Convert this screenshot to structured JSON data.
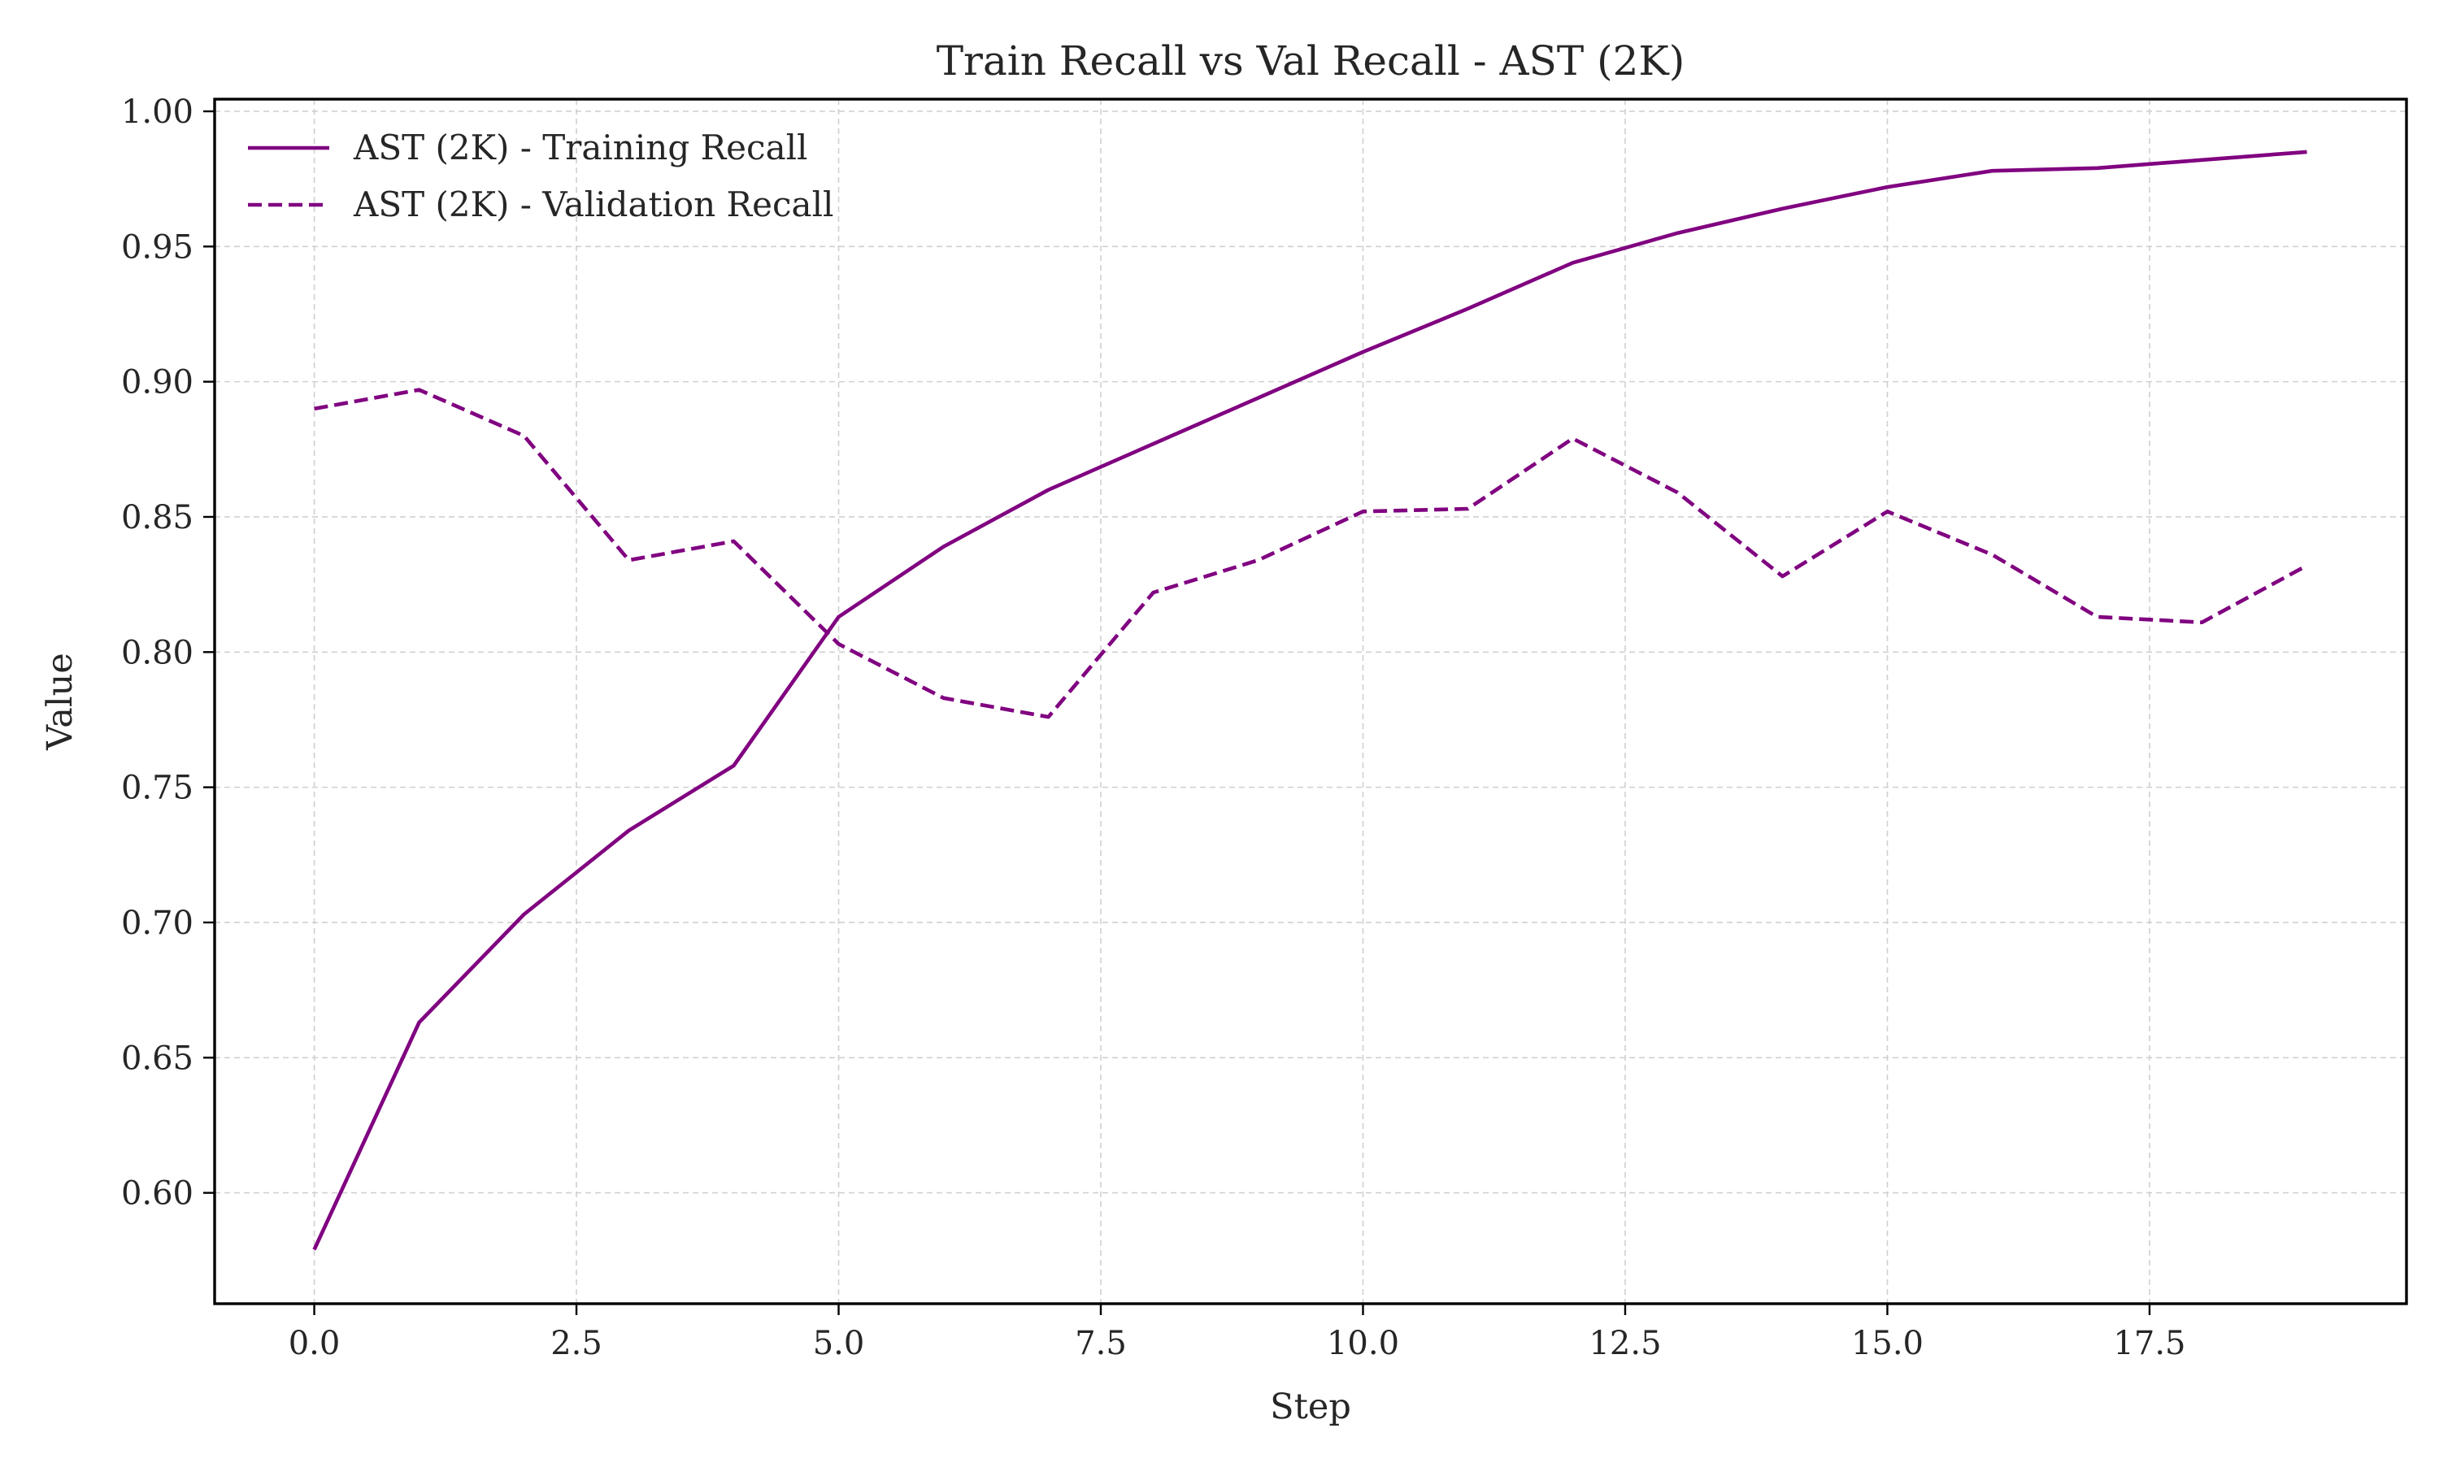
{
  "chart_data": {
    "type": "line",
    "title": "Train Recall vs Val Recall - AST (2K)",
    "xlabel": "Step",
    "ylabel": "Value",
    "xlim": [
      -0.95,
      19.95
    ],
    "ylim": [
      0.559,
      1.0045
    ],
    "xticks": [
      0,
      2.5,
      5,
      7.5,
      10,
      12.5,
      15,
      17.5
    ],
    "xtick_labels": [
      "0.0",
      "2.5",
      "5.0",
      "7.5",
      "10.0",
      "12.5",
      "15.0",
      "17.5"
    ],
    "yticks": [
      0.6,
      0.65,
      0.7,
      0.75,
      0.8,
      0.85,
      0.9,
      0.95,
      1.0
    ],
    "ytick_labels": [
      "0.60",
      "0.65",
      "0.70",
      "0.75",
      "0.80",
      "0.85",
      "0.90",
      "0.95",
      "1.00"
    ],
    "grid": true,
    "legend_position": "top-left",
    "x": [
      0,
      1,
      2,
      3,
      4,
      5,
      6,
      7,
      8,
      9,
      10,
      11,
      12,
      13,
      14,
      15,
      16,
      17,
      18,
      19
    ],
    "series": [
      {
        "name": "AST (2K) - Training Recall",
        "color": "#800080",
        "linestyle": "solid",
        "values": [
          0.579,
          0.663,
          0.703,
          0.734,
          0.758,
          0.813,
          0.839,
          0.86,
          0.877,
          0.894,
          0.911,
          0.927,
          0.944,
          0.955,
          0.964,
          0.972,
          0.978,
          0.979,
          0.982,
          0.985
        ]
      },
      {
        "name": "AST (2K) - Validation Recall",
        "color": "#800080",
        "linestyle": "dashed",
        "values": [
          0.89,
          0.897,
          0.88,
          0.834,
          0.841,
          0.803,
          0.783,
          0.776,
          0.822,
          0.834,
          0.852,
          0.853,
          0.879,
          0.859,
          0.828,
          0.852,
          0.836,
          0.813,
          0.811,
          0.832
        ]
      }
    ]
  }
}
